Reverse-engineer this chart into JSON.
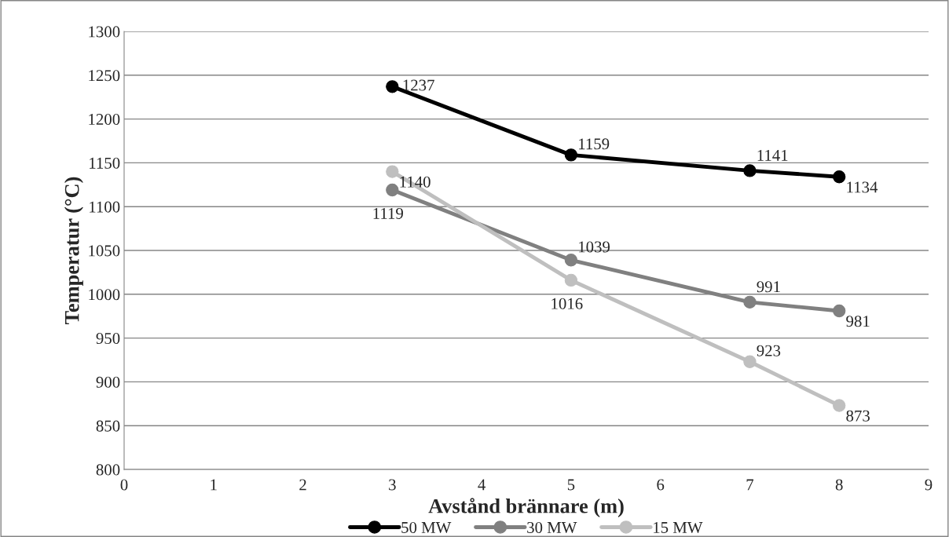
{
  "chart_data": {
    "type": "line",
    "xlabel": "Avstånd brännare (m)",
    "ylabel": "Temperatur (°C)",
    "xlim": [
      0,
      9
    ],
    "xticks": [
      0,
      1,
      2,
      3,
      4,
      5,
      6,
      7,
      8,
      9
    ],
    "ylim": [
      800,
      1300
    ],
    "yticks": [
      800,
      850,
      900,
      950,
      1000,
      1050,
      1100,
      1150,
      1200,
      1250,
      1300
    ],
    "x": [
      3,
      5,
      7,
      8
    ],
    "series": [
      {
        "name": "50 MW",
        "color": "#000000",
        "values": [
          1237,
          1159,
          1141,
          1134
        ]
      },
      {
        "name": "30 MW",
        "color": "#808080",
        "values": [
          1119,
          1039,
          991,
          981
        ]
      },
      {
        "name": "15 MW",
        "color": "#bfbfbf",
        "values": [
          1140,
          1016,
          923,
          873
        ]
      }
    ],
    "grid": "y",
    "legend": "bottom",
    "marker": "circle",
    "line_style": "solid",
    "data_labels": true
  }
}
